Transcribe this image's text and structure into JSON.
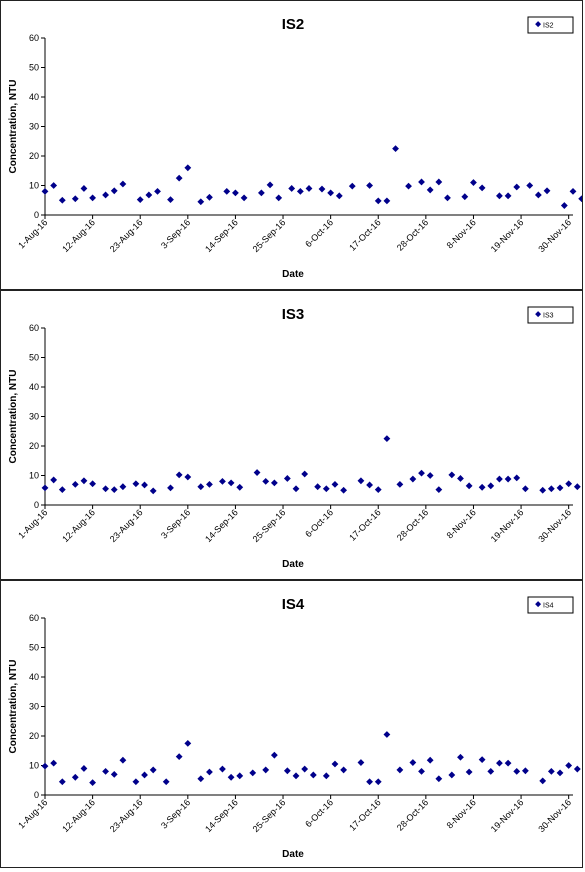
{
  "chart_data": [
    {
      "type": "scatter",
      "title": "IS2",
      "xlabel": "Date",
      "ylabel": "Concentration, NTU",
      "ylim": [
        0,
        60
      ],
      "yticks": [
        0,
        10,
        20,
        30,
        40,
        50,
        60
      ],
      "xlim": [
        "2016-08-01",
        "2016-12-01"
      ],
      "xtick_labels": [
        {
          "date": "2016-08-01",
          "label": "1-Aug-16"
        },
        {
          "date": "2016-08-12",
          "label": "12-Aug-16"
        },
        {
          "date": "2016-08-23",
          "label": "23-Aug-16"
        },
        {
          "date": "2016-09-03",
          "label": "3-Sep-16"
        },
        {
          "date": "2016-09-14",
          "label": "14-Sep-16"
        },
        {
          "date": "2016-09-25",
          "label": "25-Sep-16"
        },
        {
          "date": "2016-10-06",
          "label": "6-Oct-16"
        },
        {
          "date": "2016-10-17",
          "label": "17-Oct-16"
        },
        {
          "date": "2016-10-28",
          "label": "28-Oct-16"
        },
        {
          "date": "2016-11-08",
          "label": "8-Nov-16"
        },
        {
          "date": "2016-11-19",
          "label": "19-Nov-16"
        },
        {
          "date": "2016-11-30",
          "label": "30-Nov-16"
        }
      ],
      "legend_position": "top-right",
      "grid": false,
      "marker_color": "#00008b",
      "series": [
        {
          "name": "IS2",
          "points": [
            {
              "x": "2016-08-01",
              "y": 8.0
            },
            {
              "x": "2016-08-03",
              "y": 10.0
            },
            {
              "x": "2016-08-05",
              "y": 5.0
            },
            {
              "x": "2016-08-08",
              "y": 5.5
            },
            {
              "x": "2016-08-10",
              "y": 9.0
            },
            {
              "x": "2016-08-12",
              "y": 5.8
            },
            {
              "x": "2016-08-15",
              "y": 6.8
            },
            {
              "x": "2016-08-17",
              "y": 8.2
            },
            {
              "x": "2016-08-19",
              "y": 10.5
            },
            {
              "x": "2016-08-23",
              "y": 5.2
            },
            {
              "x": "2016-08-25",
              "y": 6.8
            },
            {
              "x": "2016-08-27",
              "y": 8.0
            },
            {
              "x": "2016-08-30",
              "y": 5.2
            },
            {
              "x": "2016-09-01",
              "y": 12.5
            },
            {
              "x": "2016-09-03",
              "y": 16.0
            },
            {
              "x": "2016-09-06",
              "y": 4.5
            },
            {
              "x": "2016-09-08",
              "y": 6.0
            },
            {
              "x": "2016-09-12",
              "y": 8.0
            },
            {
              "x": "2016-09-14",
              "y": 7.5
            },
            {
              "x": "2016-09-16",
              "y": 5.8
            },
            {
              "x": "2016-09-20",
              "y": 7.5
            },
            {
              "x": "2016-09-22",
              "y": 10.2
            },
            {
              "x": "2016-09-24",
              "y": 5.8
            },
            {
              "x": "2016-09-27",
              "y": 9.0
            },
            {
              "x": "2016-09-29",
              "y": 8.0
            },
            {
              "x": "2016-10-01",
              "y": 9.0
            },
            {
              "x": "2016-10-04",
              "y": 8.8
            },
            {
              "x": "2016-10-06",
              "y": 7.5
            },
            {
              "x": "2016-10-08",
              "y": 6.5
            },
            {
              "x": "2016-10-11",
              "y": 9.8
            },
            {
              "x": "2016-10-15",
              "y": 10.0
            },
            {
              "x": "2016-10-17",
              "y": 4.8
            },
            {
              "x": "2016-10-19",
              "y": 4.8
            },
            {
              "x": "2016-10-21",
              "y": 22.5
            },
            {
              "x": "2016-10-24",
              "y": 9.8
            },
            {
              "x": "2016-10-27",
              "y": 11.2
            },
            {
              "x": "2016-10-29",
              "y": 8.5
            },
            {
              "x": "2016-10-31",
              "y": 11.2
            },
            {
              "x": "2016-11-02",
              "y": 5.8
            },
            {
              "x": "2016-11-06",
              "y": 6.2
            },
            {
              "x": "2016-11-08",
              "y": 11.0
            },
            {
              "x": "2016-11-10",
              "y": 9.2
            },
            {
              "x": "2016-11-14",
              "y": 6.5
            },
            {
              "x": "2016-11-16",
              "y": 6.5
            },
            {
              "x": "2016-11-18",
              "y": 9.5
            },
            {
              "x": "2016-11-21",
              "y": 10.0
            },
            {
              "x": "2016-11-23",
              "y": 6.8
            },
            {
              "x": "2016-11-25",
              "y": 8.2
            },
            {
              "x": "2016-11-29",
              "y": 3.2
            },
            {
              "x": "2016-12-01",
              "y": 8.0
            },
            {
              "x": "2016-12-03",
              "y": 5.5
            },
            {
              "x": "2016-12-05",
              "y": 10.2
            },
            {
              "x": "2016-12-07",
              "y": 8.5
            }
          ]
        }
      ]
    },
    {
      "type": "scatter",
      "title": "IS3",
      "xlabel": "Date",
      "ylabel": "Concentration, NTU",
      "ylim": [
        0,
        60
      ],
      "yticks": [
        0,
        10,
        20,
        30,
        40,
        50,
        60
      ],
      "xlim": [
        "2016-08-01",
        "2016-12-01"
      ],
      "xtick_labels": [
        {
          "date": "2016-08-01",
          "label": "1-Aug-16"
        },
        {
          "date": "2016-08-12",
          "label": "12-Aug-16"
        },
        {
          "date": "2016-08-23",
          "label": "23-Aug-16"
        },
        {
          "date": "2016-09-03",
          "label": "3-Sep-16"
        },
        {
          "date": "2016-09-14",
          "label": "14-Sep-16"
        },
        {
          "date": "2016-09-25",
          "label": "25-Sep-16"
        },
        {
          "date": "2016-10-06",
          "label": "6-Oct-16"
        },
        {
          "date": "2016-10-17",
          "label": "17-Oct-16"
        },
        {
          "date": "2016-10-28",
          "label": "28-Oct-16"
        },
        {
          "date": "2016-11-08",
          "label": "8-Nov-16"
        },
        {
          "date": "2016-11-19",
          "label": "19-Nov-16"
        },
        {
          "date": "2016-11-30",
          "label": "30-Nov-16"
        }
      ],
      "legend_position": "top-right",
      "grid": false,
      "marker_color": "#00008b",
      "series": [
        {
          "name": "IS3",
          "points": [
            {
              "x": "2016-08-01",
              "y": 5.8
            },
            {
              "x": "2016-08-03",
              "y": 8.5
            },
            {
              "x": "2016-08-05",
              "y": 5.2
            },
            {
              "x": "2016-08-08",
              "y": 7.0
            },
            {
              "x": "2016-08-10",
              "y": 8.2
            },
            {
              "x": "2016-08-12",
              "y": 7.2
            },
            {
              "x": "2016-08-15",
              "y": 5.5
            },
            {
              "x": "2016-08-17",
              "y": 5.2
            },
            {
              "x": "2016-08-19",
              "y": 6.2
            },
            {
              "x": "2016-08-22",
              "y": 7.2
            },
            {
              "x": "2016-08-24",
              "y": 6.8
            },
            {
              "x": "2016-08-26",
              "y": 4.8
            },
            {
              "x": "2016-08-30",
              "y": 5.8
            },
            {
              "x": "2016-09-01",
              "y": 10.2
            },
            {
              "x": "2016-09-03",
              "y": 9.5
            },
            {
              "x": "2016-09-06",
              "y": 6.2
            },
            {
              "x": "2016-09-08",
              "y": 7.0
            },
            {
              "x": "2016-09-11",
              "y": 8.0
            },
            {
              "x": "2016-09-13",
              "y": 7.5
            },
            {
              "x": "2016-09-15",
              "y": 6.0
            },
            {
              "x": "2016-09-19",
              "y": 11.0
            },
            {
              "x": "2016-09-21",
              "y": 8.0
            },
            {
              "x": "2016-09-23",
              "y": 7.5
            },
            {
              "x": "2016-09-26",
              "y": 9.0
            },
            {
              "x": "2016-09-28",
              "y": 5.5
            },
            {
              "x": "2016-09-30",
              "y": 10.5
            },
            {
              "x": "2016-10-03",
              "y": 6.2
            },
            {
              "x": "2016-10-05",
              "y": 5.5
            },
            {
              "x": "2016-10-07",
              "y": 7.0
            },
            {
              "x": "2016-10-09",
              "y": 5.0
            },
            {
              "x": "2016-10-13",
              "y": 8.2
            },
            {
              "x": "2016-10-15",
              "y": 6.8
            },
            {
              "x": "2016-10-17",
              "y": 5.2
            },
            {
              "x": "2016-10-19",
              "y": 22.5
            },
            {
              "x": "2016-10-22",
              "y": 7.0
            },
            {
              "x": "2016-10-25",
              "y": 8.8
            },
            {
              "x": "2016-10-27",
              "y": 10.8
            },
            {
              "x": "2016-10-29",
              "y": 10.0
            },
            {
              "x": "2016-10-31",
              "y": 5.2
            },
            {
              "x": "2016-11-03",
              "y": 10.2
            },
            {
              "x": "2016-11-05",
              "y": 9.0
            },
            {
              "x": "2016-11-07",
              "y": 6.5
            },
            {
              "x": "2016-11-10",
              "y": 6.0
            },
            {
              "x": "2016-11-12",
              "y": 6.5
            },
            {
              "x": "2016-11-14",
              "y": 8.8
            },
            {
              "x": "2016-11-16",
              "y": 8.8
            },
            {
              "x": "2016-11-18",
              "y": 9.2
            },
            {
              "x": "2016-11-20",
              "y": 5.5
            },
            {
              "x": "2016-11-24",
              "y": 5.0
            },
            {
              "x": "2016-11-26",
              "y": 5.5
            },
            {
              "x": "2016-11-28",
              "y": 5.8
            },
            {
              "x": "2016-11-30",
              "y": 7.2
            },
            {
              "x": "2016-12-02",
              "y": 6.2
            }
          ]
        }
      ]
    },
    {
      "type": "scatter",
      "title": "IS4",
      "xlabel": "Date",
      "ylabel": "Concentration, NTU",
      "ylim": [
        0,
        60
      ],
      "yticks": [
        0,
        10,
        20,
        30,
        40,
        50,
        60
      ],
      "xlim": [
        "2016-08-01",
        "2016-12-01"
      ],
      "xtick_labels": [
        {
          "date": "2016-08-01",
          "label": "1-Aug-16"
        },
        {
          "date": "2016-08-12",
          "label": "12-Aug-16"
        },
        {
          "date": "2016-08-23",
          "label": "23-Aug-16"
        },
        {
          "date": "2016-09-03",
          "label": "3-Sep-16"
        },
        {
          "date": "2016-09-14",
          "label": "14-Sep-16"
        },
        {
          "date": "2016-09-25",
          "label": "25-Sep-16"
        },
        {
          "date": "2016-10-06",
          "label": "6-Oct-16"
        },
        {
          "date": "2016-10-17",
          "label": "17-Oct-16"
        },
        {
          "date": "2016-10-28",
          "label": "28-Oct-16"
        },
        {
          "date": "2016-11-08",
          "label": "8-Nov-16"
        },
        {
          "date": "2016-11-19",
          "label": "19-Nov-16"
        },
        {
          "date": "2016-11-30",
          "label": "30-Nov-16"
        }
      ],
      "legend_position": "top-right",
      "grid": false,
      "marker_color": "#00008b",
      "series": [
        {
          "name": "IS4",
          "points": [
            {
              "x": "2016-08-01",
              "y": 9.8
            },
            {
              "x": "2016-08-03",
              "y": 10.8
            },
            {
              "x": "2016-08-05",
              "y": 4.5
            },
            {
              "x": "2016-08-08",
              "y": 6.0
            },
            {
              "x": "2016-08-10",
              "y": 9.0
            },
            {
              "x": "2016-08-12",
              "y": 4.2
            },
            {
              "x": "2016-08-15",
              "y": 8.0
            },
            {
              "x": "2016-08-17",
              "y": 7.0
            },
            {
              "x": "2016-08-19",
              "y": 11.8
            },
            {
              "x": "2016-08-22",
              "y": 4.5
            },
            {
              "x": "2016-08-24",
              "y": 6.8
            },
            {
              "x": "2016-08-26",
              "y": 8.5
            },
            {
              "x": "2016-08-29",
              "y": 4.5
            },
            {
              "x": "2016-09-01",
              "y": 13.0
            },
            {
              "x": "2016-09-03",
              "y": 17.5
            },
            {
              "x": "2016-09-06",
              "y": 5.5
            },
            {
              "x": "2016-09-08",
              "y": 7.8
            },
            {
              "x": "2016-09-11",
              "y": 8.8
            },
            {
              "x": "2016-09-13",
              "y": 6.0
            },
            {
              "x": "2016-09-15",
              "y": 6.5
            },
            {
              "x": "2016-09-18",
              "y": 7.5
            },
            {
              "x": "2016-09-21",
              "y": 8.5
            },
            {
              "x": "2016-09-23",
              "y": 13.5
            },
            {
              "x": "2016-09-26",
              "y": 8.2
            },
            {
              "x": "2016-09-28",
              "y": 6.5
            },
            {
              "x": "2016-09-30",
              "y": 8.8
            },
            {
              "x": "2016-10-02",
              "y": 6.8
            },
            {
              "x": "2016-10-05",
              "y": 6.5
            },
            {
              "x": "2016-10-07",
              "y": 10.5
            },
            {
              "x": "2016-10-09",
              "y": 8.5
            },
            {
              "x": "2016-10-13",
              "y": 11.0
            },
            {
              "x": "2016-10-15",
              "y": 4.5
            },
            {
              "x": "2016-10-17",
              "y": 4.5
            },
            {
              "x": "2016-10-19",
              "y": 20.5
            },
            {
              "x": "2016-10-22",
              "y": 8.5
            },
            {
              "x": "2016-10-25",
              "y": 11.0
            },
            {
              "x": "2016-10-27",
              "y": 8.0
            },
            {
              "x": "2016-10-29",
              "y": 11.8
            },
            {
              "x": "2016-10-31",
              "y": 5.5
            },
            {
              "x": "2016-11-03",
              "y": 6.8
            },
            {
              "x": "2016-11-05",
              "y": 12.8
            },
            {
              "x": "2016-11-07",
              "y": 7.8
            },
            {
              "x": "2016-11-10",
              "y": 12.0
            },
            {
              "x": "2016-11-12",
              "y": 8.0
            },
            {
              "x": "2016-11-14",
              "y": 10.8
            },
            {
              "x": "2016-11-16",
              "y": 10.8
            },
            {
              "x": "2016-11-18",
              "y": 8.0
            },
            {
              "x": "2016-11-20",
              "y": 8.2
            },
            {
              "x": "2016-11-24",
              "y": 4.8
            },
            {
              "x": "2016-11-26",
              "y": 8.0
            },
            {
              "x": "2016-11-28",
              "y": 7.5
            },
            {
              "x": "2016-11-30",
              "y": 10.0
            },
            {
              "x": "2016-12-02",
              "y": 8.8
            }
          ]
        }
      ]
    }
  ]
}
